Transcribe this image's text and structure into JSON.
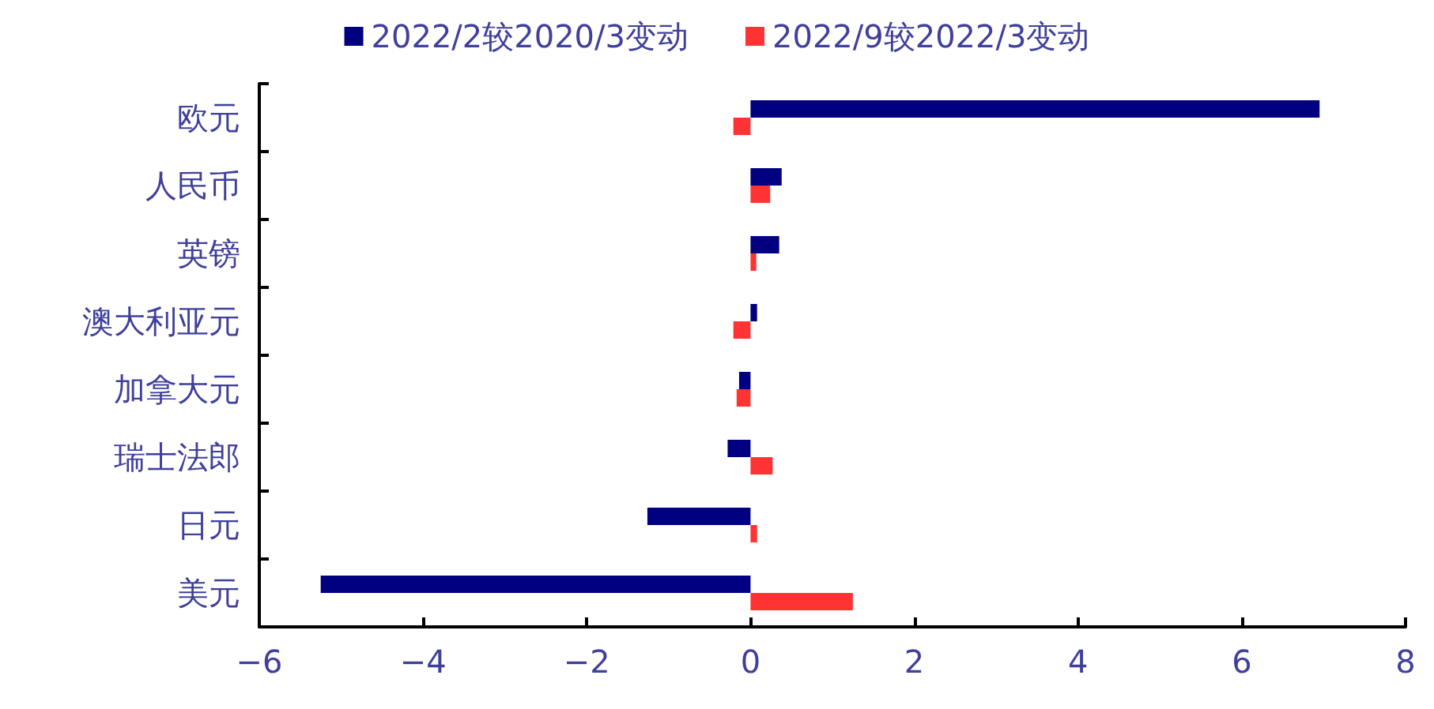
{
  "chart_data": {
    "type": "bar",
    "orientation": "horizontal",
    "categories": [
      "欧元",
      "人民币",
      "英镑",
      "澳大利亚元",
      "加拿大元",
      "瑞士法郎",
      "日元",
      "美元"
    ],
    "series": [
      {
        "name": "2022/2较2020/3变动",
        "color": "#000080",
        "values": [
          6.95,
          0.38,
          0.35,
          0.08,
          -0.14,
          -0.28,
          -1.26,
          -5.25
        ]
      },
      {
        "name": "2022/9较2022/3变动",
        "color": "#ff3333",
        "values": [
          -0.21,
          0.24,
          0.07,
          -0.21,
          -0.17,
          0.27,
          0.08,
          1.25
        ]
      }
    ],
    "xlim": [
      -6,
      8
    ],
    "xticks": [
      {
        "value": -6,
        "label": "−6"
      },
      {
        "value": -4,
        "label": "−4"
      },
      {
        "value": -2,
        "label": "−2"
      },
      0,
      2,
      4,
      6,
      8
    ],
    "grid": false,
    "legend": "top"
  }
}
